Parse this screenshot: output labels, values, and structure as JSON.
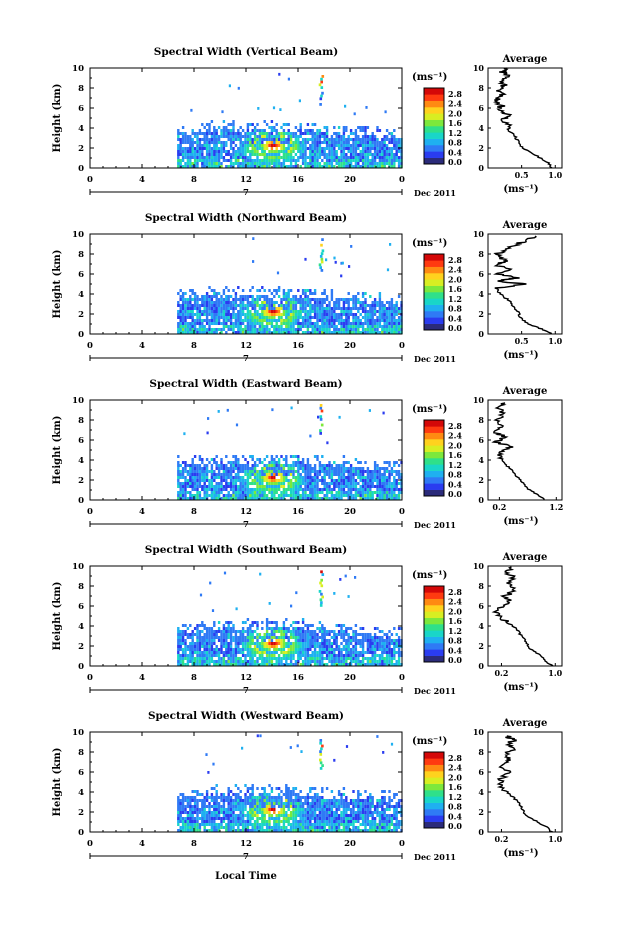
{
  "figure": {
    "date_label": "Dec 2011",
    "day_label": "7",
    "xlabel": "Local Time",
    "colorbar_unit": "(ms⁻¹)",
    "avg_title": "Average",
    "avg_xlabel": "(ms⁻¹)"
  },
  "colorbar": {
    "ticks": [
      "2.8",
      "2.4",
      "2.0",
      "1.6",
      "1.2",
      "0.8",
      "0.4",
      "0.0"
    ],
    "colors": [
      "#2b2b7a",
      "#2a3cf0",
      "#2f7af5",
      "#1fb0f0",
      "#19d6c8",
      "#2fe08a",
      "#7ce83c",
      "#d8ee22",
      "#ffd21e",
      "#ff8a12",
      "#ff3a10",
      "#d40808"
    ]
  },
  "chart_data": [
    {
      "type": "heatmap",
      "title": "Spectral Width (Vertical Beam)",
      "ylabel": "Height (km)",
      "xlabel": "",
      "xticks": [
        "0",
        "4",
        "8",
        "12",
        "16",
        "20",
        "0"
      ],
      "yticks": [
        "0",
        "2",
        "4",
        "6",
        "8",
        "10"
      ],
      "xlim": [
        0,
        24
      ],
      "ylim": [
        0,
        10
      ],
      "data_bounds": {
        "x_start": 6.7,
        "x_end": 24,
        "bl_top": 3.9
      },
      "hotspot": {
        "x": 14.0,
        "y": 2.4,
        "max": 2.8
      },
      "plume": {
        "x": 17.7,
        "y_bottom": 6.5,
        "y_top": 9.5
      },
      "average": {
        "xticks": [
          "0.5",
          "1.0"
        ],
        "xlim": [
          0,
          1.1
        ],
        "profile": [
          [
            0.95,
            0
          ],
          [
            0.88,
            0.6
          ],
          [
            0.7,
            1.3
          ],
          [
            0.52,
            2
          ],
          [
            0.45,
            2.6
          ],
          [
            0.4,
            3.2
          ],
          [
            0.3,
            3.8
          ],
          [
            0.32,
            4.3
          ],
          [
            0.22,
            4.9
          ],
          [
            0.34,
            5.2
          ],
          [
            0.18,
            5.6
          ],
          [
            0.2,
            6.2
          ],
          [
            0.12,
            6.8
          ],
          [
            0.22,
            7.3
          ],
          [
            0.15,
            7.8
          ],
          [
            0.25,
            8.3
          ],
          [
            0.18,
            8.8
          ],
          [
            0.35,
            9.2
          ],
          [
            0.22,
            9.6
          ],
          [
            0.28,
            10
          ]
        ]
      }
    },
    {
      "type": "heatmap",
      "title": "Spectral Width (Northward Beam)",
      "ylabel": "Height (km)",
      "xlabel": "",
      "xticks": [
        "0",
        "4",
        "8",
        "12",
        "16",
        "20",
        "0"
      ],
      "yticks": [
        "0",
        "2",
        "4",
        "6",
        "8",
        "10"
      ],
      "xlim": [
        0,
        24
      ],
      "ylim": [
        0,
        10
      ],
      "data_bounds": {
        "x_start": 6.7,
        "x_end": 24,
        "bl_top": 3.9
      },
      "hotspot": {
        "x": 14.0,
        "y": 2.4,
        "max": 2.8
      },
      "plume": {
        "x": 17.7,
        "y_bottom": 6.5,
        "y_top": 9.6
      },
      "average": {
        "xticks": [
          "0.5",
          "1.0"
        ],
        "xlim": [
          0,
          1.1
        ],
        "profile": [
          [
            0.95,
            0
          ],
          [
            0.8,
            0.5
          ],
          [
            0.6,
            1
          ],
          [
            0.48,
            1.6
          ],
          [
            0.45,
            2.2
          ],
          [
            0.38,
            2.8
          ],
          [
            0.3,
            3.4
          ],
          [
            0.18,
            4
          ],
          [
            0.12,
            4.6
          ],
          [
            0.55,
            5
          ],
          [
            0.1,
            5.3
          ],
          [
            0.45,
            5.6
          ],
          [
            0.15,
            6
          ],
          [
            0.35,
            6.4
          ],
          [
            0.1,
            6.9
          ],
          [
            0.3,
            7.3
          ],
          [
            0.12,
            7.8
          ],
          [
            0.2,
            8.3
          ],
          [
            0.4,
            8.9
          ],
          [
            0.55,
            9.3
          ],
          [
            0.7,
            9.8
          ]
        ]
      }
    },
    {
      "type": "heatmap",
      "title": "Spectral Width (Eastward Beam)",
      "ylabel": "Height (km)",
      "xlabel": "",
      "xticks": [
        "0",
        "4",
        "8",
        "12",
        "16",
        "20",
        "0"
      ],
      "yticks": [
        "0",
        "2",
        "4",
        "6",
        "8",
        "10"
      ],
      "xlim": [
        0,
        24
      ],
      "ylim": [
        0,
        10
      ],
      "data_bounds": {
        "x_start": 6.7,
        "x_end": 24,
        "bl_top": 3.9
      },
      "hotspot": {
        "x": 14.0,
        "y": 2.4,
        "max": 2.8
      },
      "plume": {
        "x": 17.7,
        "y_bottom": 6.8,
        "y_top": 9.6
      },
      "average": {
        "xticks": [
          "0.2",
          "1.2"
        ],
        "xlim": [
          0,
          1.3
        ],
        "profile": [
          [
            1.0,
            0
          ],
          [
            0.85,
            0.6
          ],
          [
            0.68,
            1.2
          ],
          [
            0.6,
            1.8
          ],
          [
            0.5,
            2.4
          ],
          [
            0.42,
            3
          ],
          [
            0.3,
            3.6
          ],
          [
            0.25,
            4.2
          ],
          [
            0.18,
            4.8
          ],
          [
            0.4,
            5.3
          ],
          [
            0.15,
            5.8
          ],
          [
            0.3,
            6.3
          ],
          [
            0.12,
            6.8
          ],
          [
            0.25,
            7.4
          ],
          [
            0.15,
            8
          ],
          [
            0.28,
            8.6
          ],
          [
            0.2,
            9.2
          ],
          [
            0.3,
            9.7
          ]
        ]
      }
    },
    {
      "type": "heatmap",
      "title": "Spectral Width (Southward Beam)",
      "ylabel": "Height (km)",
      "xlabel": "",
      "xticks": [
        "0",
        "4",
        "8",
        "12",
        "16",
        "20",
        "0"
      ],
      "yticks": [
        "0",
        "2",
        "4",
        "6",
        "8",
        "10"
      ],
      "xlim": [
        0,
        24
      ],
      "ylim": [
        0,
        10
      ],
      "data_bounds": {
        "x_start": 6.7,
        "x_end": 24,
        "bl_top": 3.9
      },
      "hotspot": {
        "x": 14.0,
        "y": 2.4,
        "max": 2.8
      },
      "plume": {
        "x": 17.7,
        "y_bottom": 6.2,
        "y_top": 9.6
      },
      "average": {
        "xticks": [
          "0.2",
          "1.0"
        ],
        "xlim": [
          0,
          1.1
        ],
        "profile": [
          [
            0.95,
            0
          ],
          [
            0.85,
            0.6
          ],
          [
            0.75,
            1.2
          ],
          [
            0.62,
            1.8
          ],
          [
            0.55,
            2.5
          ],
          [
            0.48,
            3.2
          ],
          [
            0.42,
            3.8
          ],
          [
            0.3,
            4.3
          ],
          [
            0.2,
            4.9
          ],
          [
            0.12,
            5.4
          ],
          [
            0.2,
            6
          ],
          [
            0.3,
            6.5
          ],
          [
            0.25,
            7
          ],
          [
            0.4,
            7.6
          ],
          [
            0.3,
            8.2
          ],
          [
            0.38,
            8.8
          ],
          [
            0.25,
            9.4
          ],
          [
            0.35,
            9.9
          ]
        ]
      }
    },
    {
      "type": "heatmap",
      "title": "Spectral Width (Westward Beam)",
      "ylabel": "Height (km)",
      "xlabel": "Local Time",
      "xticks": [
        "0",
        "4",
        "8",
        "12",
        "16",
        "20",
        "0"
      ],
      "yticks": [
        "0",
        "2",
        "4",
        "6",
        "8",
        "10"
      ],
      "xlim": [
        0,
        24
      ],
      "ylim": [
        0,
        10
      ],
      "data_bounds": {
        "x_start": 6.7,
        "x_end": 24,
        "bl_top": 3.9
      },
      "hotspot": {
        "x": 14.0,
        "y": 2.4,
        "max": 2.8
      },
      "plume": {
        "x": 17.7,
        "y_bottom": 6.5,
        "y_top": 9.6
      },
      "average": {
        "xticks": [
          "0.2",
          "1.0"
        ],
        "xlim": [
          0,
          1.1
        ],
        "profile": [
          [
            0.95,
            0
          ],
          [
            0.85,
            0.6
          ],
          [
            0.68,
            1.2
          ],
          [
            0.55,
            1.8
          ],
          [
            0.5,
            2.4
          ],
          [
            0.45,
            3
          ],
          [
            0.35,
            3.6
          ],
          [
            0.25,
            4.2
          ],
          [
            0.15,
            4.8
          ],
          [
            0.22,
            5.4
          ],
          [
            0.3,
            6
          ],
          [
            0.2,
            6.6
          ],
          [
            0.35,
            7.2
          ],
          [
            0.25,
            7.8
          ],
          [
            0.4,
            8.3
          ],
          [
            0.3,
            8.8
          ],
          [
            0.38,
            9.2
          ],
          [
            0.28,
            9.6
          ]
        ]
      }
    }
  ]
}
